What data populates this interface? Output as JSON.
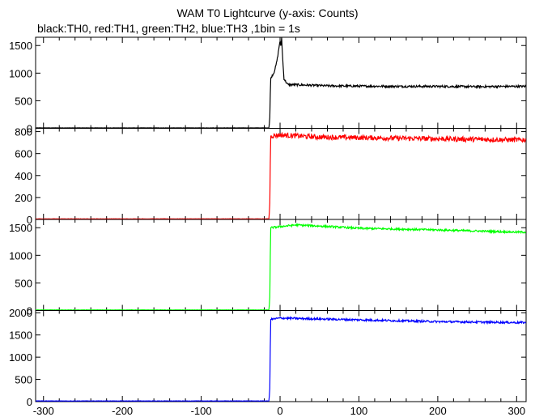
{
  "chart_data": {
    "type": "line",
    "title": "WAM T0 Lightcurve (y-axis: Counts)",
    "subtitle": "black:TH0, red:TH1, green:TH2, blue:TH3 ,1bin = 1s",
    "xlim": [
      -310,
      312
    ],
    "x_ticks": [
      -300,
      -200,
      -100,
      0,
      100,
      200,
      300
    ],
    "trigger_x": -12,
    "grid": false,
    "panels": [
      {
        "name": "TH0",
        "color": "#000000",
        "ylim": [
          0,
          1650
        ],
        "y_ticks": [
          0,
          500,
          1000,
          1500
        ],
        "points": [
          [
            -310,
            8
          ],
          [
            -14,
            8
          ],
          [
            -13,
            200
          ],
          [
            -12,
            900
          ],
          [
            -10,
            960
          ],
          [
            -8,
            1000
          ],
          [
            -5,
            1150
          ],
          [
            -3,
            1300
          ],
          [
            -1,
            1500
          ],
          [
            0,
            1600
          ],
          [
            1,
            1450
          ],
          [
            2,
            1650
          ],
          [
            3,
            1350
          ],
          [
            4,
            1100
          ],
          [
            5,
            900
          ],
          [
            7,
            850
          ],
          [
            10,
            790
          ],
          [
            20,
            790
          ],
          [
            40,
            780
          ],
          [
            60,
            770
          ],
          [
            100,
            765
          ],
          [
            150,
            760
          ],
          [
            200,
            760
          ],
          [
            250,
            755
          ],
          [
            300,
            760
          ],
          [
            312,
            760
          ]
        ],
        "noise": 40
      },
      {
        "name": "TH1",
        "color": "#ff0000",
        "ylim": [
          0,
          830
        ],
        "y_ticks": [
          0,
          200,
          400,
          600,
          800
        ],
        "points": [
          [
            -310,
            5
          ],
          [
            -14,
            5
          ],
          [
            -13,
            150
          ],
          [
            -12,
            760
          ],
          [
            0,
            770
          ],
          [
            50,
            750
          ],
          [
            100,
            745
          ],
          [
            200,
            735
          ],
          [
            300,
            725
          ],
          [
            312,
            725
          ]
        ],
        "noise": 45
      },
      {
        "name": "TH2",
        "color": "#00ff00",
        "ylim": [
          0,
          1650
        ],
        "y_ticks": [
          0,
          500,
          1000,
          1500
        ],
        "points": [
          [
            -310,
            10
          ],
          [
            -14,
            10
          ],
          [
            -13,
            250
          ],
          [
            -12,
            1500
          ],
          [
            0,
            1520
          ],
          [
            20,
            1550
          ],
          [
            50,
            1530
          ],
          [
            100,
            1490
          ],
          [
            200,
            1460
          ],
          [
            300,
            1420
          ],
          [
            312,
            1420
          ]
        ],
        "noise": 35
      },
      {
        "name": "TH3",
        "color": "#0000ff",
        "ylim": [
          0,
          2050
        ],
        "y_ticks": [
          0,
          500,
          1000,
          1500,
          2000
        ],
        "points": [
          [
            -310,
            15
          ],
          [
            -14,
            15
          ],
          [
            -13,
            300
          ],
          [
            -12,
            1850
          ],
          [
            0,
            1880
          ],
          [
            50,
            1860
          ],
          [
            100,
            1840
          ],
          [
            200,
            1800
          ],
          [
            300,
            1780
          ],
          [
            312,
            1780
          ]
        ],
        "noise": 45
      }
    ]
  }
}
